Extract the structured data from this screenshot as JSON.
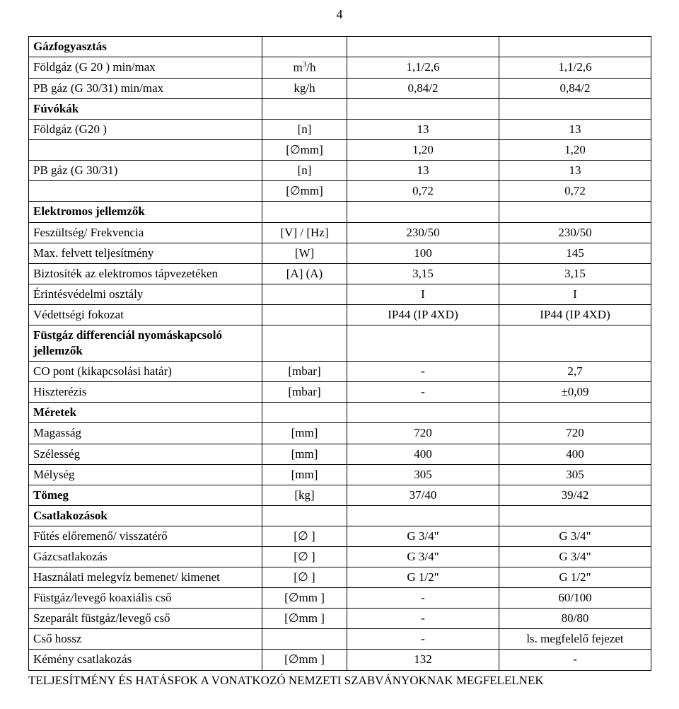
{
  "page_number": "4",
  "rows": [
    {
      "label": "Gázfogyasztás",
      "bold": true,
      "unit": "",
      "v1": "",
      "v2": ""
    },
    {
      "label": "Földgáz (G 20 ) min/max",
      "unit": "m³/h",
      "v1": "1,1/2,6",
      "v2": "1,1/2,6"
    },
    {
      "label": "PB gáz (G 30/31) min/max",
      "unit": "kg/h",
      "v1": "0,84/2",
      "v2": "0,84/2"
    },
    {
      "label": "Fúvókák",
      "bold": true,
      "unit": "",
      "v1": "",
      "v2": ""
    },
    {
      "label": "Földgáz (G20 )",
      "unit": "[n]",
      "v1": "13",
      "v2": "13"
    },
    {
      "label": "",
      "unit": "[∅mm]",
      "v1": "1,20",
      "v2": "1,20"
    },
    {
      "label": "PB gáz (G 30/31)",
      "unit": "[n]",
      "v1": "13",
      "v2": "13"
    },
    {
      "label": "",
      "unit": "[∅mm]",
      "v1": "0,72",
      "v2": "0,72"
    },
    {
      "label": "Elektromos jellemzők",
      "bold": true,
      "unit": "",
      "v1": "",
      "v2": ""
    },
    {
      "label": "Feszültség/ Frekvencia",
      "unit": "[V] / [Hz]",
      "v1": "230/50",
      "v2": "230/50"
    },
    {
      "label": "Max. felvett teljesítmény",
      "unit": "[W]",
      "v1": "100",
      "v2": "145"
    },
    {
      "label": "Biztosíték az elektromos tápvezetéken",
      "unit": "[A] (A)",
      "v1": "3,15",
      "v2": "3,15"
    },
    {
      "label": "Érintésvédelmi osztály",
      "unit": "",
      "v1": "I",
      "v2": "I"
    },
    {
      "label": "Védettségi fokozat",
      "unit": "",
      "v1": "IP44 (IP 4XD)",
      "v2": "IP44 (IP 4XD)"
    },
    {
      "label": "Füstgáz differenciál nyomáskapcsoló jellemzők",
      "bold": true,
      "unit": "",
      "v1": "",
      "v2": ""
    },
    {
      "label": "CO pont (kikapcsolási határ)",
      "unit": "[mbar]",
      "v1": "-",
      "v2": "2,7"
    },
    {
      "label": "Hiszterézis",
      "unit": "[mbar]",
      "v1": "-",
      "v2": "±0,09"
    },
    {
      "label": "Méretek",
      "bold": true,
      "unit": "",
      "v1": "",
      "v2": ""
    },
    {
      "label": "Magasság",
      "unit": "[mm]",
      "v1": "720",
      "v2": "720"
    },
    {
      "label": "Szélesség",
      "unit": "[mm]",
      "v1": "400",
      "v2": "400"
    },
    {
      "label": "Mélység",
      "unit": "[mm]",
      "v1": "305",
      "v2": "305"
    },
    {
      "label": "Tömeg",
      "bold": true,
      "unit": "[kg]",
      "v1": "37/40",
      "v2": "39/42"
    },
    {
      "label": "Csatlakozások",
      "bold": true,
      "unit": "",
      "v1": "",
      "v2": ""
    },
    {
      "label": "Fűtés előremenő/ visszatérő",
      "unit": "[∅ ]",
      "v1": "G 3/4\"",
      "v2": "G 3/4\""
    },
    {
      "label": "Gázcsatlakozás",
      "unit": "[∅ ]",
      "v1": "G 3/4\"",
      "v2": "G 3/4\""
    },
    {
      "label": "Használati melegvíz bemenet/ kimenet",
      "unit": "[∅ ]",
      "v1": "G 1/2\"",
      "v2": "G 1/2\""
    },
    {
      "label": "Füstgáz/levegő koaxiális cső",
      "unit": "[∅mm ]",
      "v1": "-",
      "v2": "60/100"
    },
    {
      "label": "Szeparált  füstgáz/levegő cső",
      "unit": "[∅mm ]",
      "v1": "-",
      "v2": "80/80"
    },
    {
      "label": "Cső hossz",
      "unit": "",
      "v1": "-",
      "v2": "ls. megfelelő fejezet"
    },
    {
      "label": "Kémény csatlakozás",
      "unit": "[∅mm ]",
      "v1": "132",
      "v2": "-"
    }
  ],
  "unit_m3h": {
    "prefix": "m",
    "sup": "3",
    "suffix": "/h"
  },
  "footer": "TELJESÍTMÉNY ÉS HATÁSFOK A VONATKOZÓ NEMZETI SZABVÁNYOKNAK MEGFELELNEK"
}
